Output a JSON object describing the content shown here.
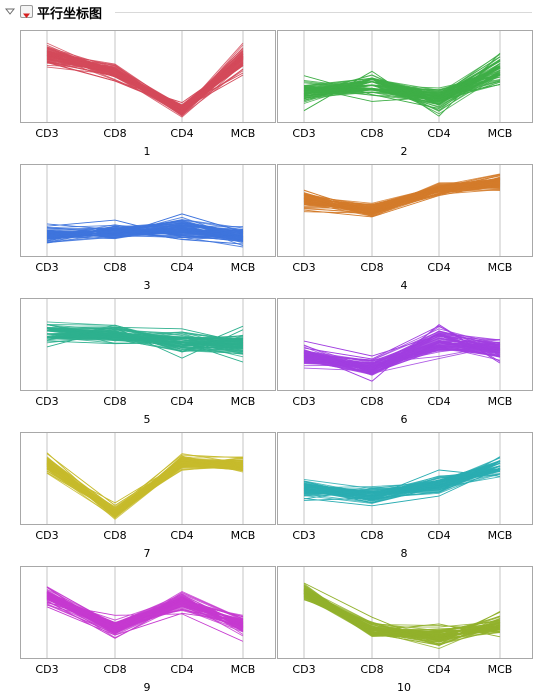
{
  "report": {
    "title": "平行坐标图"
  },
  "icons": {
    "collapse": "triangle-down-icon",
    "menu": "red-triangle-menu-icon"
  },
  "chart_data": [
    {
      "type": "parallel-coordinates",
      "title": "1",
      "axes": [
        "CD3",
        "CD8",
        "CD4",
        "MCB"
      ],
      "color": "#d44a5a",
      "profiles": {
        "center": [
          0.74,
          0.55,
          0.1,
          0.72
        ],
        "spread": [
          0.16,
          0.11,
          0.09,
          0.18
        ]
      }
    },
    {
      "type": "parallel-coordinates",
      "title": "2",
      "axes": [
        "CD3",
        "CD8",
        "CD4",
        "MCB"
      ],
      "color": "#3eae46",
      "profiles": {
        "center": [
          0.3,
          0.4,
          0.24,
          0.58
        ],
        "spread": [
          0.18,
          0.18,
          0.2,
          0.24
        ]
      }
    },
    {
      "type": "parallel-coordinates",
      "title": "3",
      "axes": [
        "CD3",
        "CD8",
        "CD4",
        "MCB"
      ],
      "color": "#3e74dd",
      "profiles": {
        "center": [
          0.2,
          0.24,
          0.28,
          0.2
        ],
        "spread": [
          0.14,
          0.12,
          0.18,
          0.14
        ]
      }
    },
    {
      "type": "parallel-coordinates",
      "title": "4",
      "axes": [
        "CD3",
        "CD8",
        "CD4",
        "MCB"
      ],
      "color": "#d37b2a",
      "profiles": {
        "center": [
          0.62,
          0.5,
          0.75,
          0.82
        ],
        "spread": [
          0.14,
          0.1,
          0.09,
          0.13
        ]
      }
    },
    {
      "type": "parallel-coordinates",
      "title": "5",
      "axes": [
        "CD3",
        "CD8",
        "CD4",
        "MCB"
      ],
      "color": "#2eb08e",
      "profiles": {
        "center": [
          0.64,
          0.62,
          0.52,
          0.5
        ],
        "spread": [
          0.16,
          0.14,
          0.16,
          0.18
        ]
      }
    },
    {
      "type": "parallel-coordinates",
      "title": "6",
      "axes": [
        "CD3",
        "CD8",
        "CD4",
        "MCB"
      ],
      "color": "#a13ee0",
      "profiles": {
        "center": [
          0.36,
          0.22,
          0.52,
          0.43
        ],
        "spread": [
          0.16,
          0.14,
          0.22,
          0.16
        ]
      }
    },
    {
      "type": "parallel-coordinates",
      "title": "7",
      "axes": [
        "CD3",
        "CD8",
        "CD4",
        "MCB"
      ],
      "color": "#c7bb2c",
      "profiles": {
        "center": [
          0.66,
          0.1,
          0.68,
          0.64
        ],
        "spread": [
          0.16,
          0.1,
          0.12,
          0.13
        ]
      }
    },
    {
      "type": "parallel-coordinates",
      "title": "8",
      "axes": [
        "CD3",
        "CD8",
        "CD4",
        "MCB"
      ],
      "color": "#2aadb2",
      "profiles": {
        "center": [
          0.38,
          0.3,
          0.42,
          0.62
        ],
        "spread": [
          0.13,
          0.13,
          0.16,
          0.14
        ]
      }
    },
    {
      "type": "parallel-coordinates",
      "title": "9",
      "axes": [
        "CD3",
        "CD8",
        "CD4",
        "MCB"
      ],
      "color": "#c63ad0",
      "profiles": {
        "center": [
          0.68,
          0.32,
          0.62,
          0.35
        ],
        "spread": [
          0.14,
          0.13,
          0.14,
          0.16
        ]
      }
    },
    {
      "type": "parallel-coordinates",
      "title": "10",
      "axes": [
        "CD3",
        "CD8",
        "CD4",
        "MCB"
      ],
      "color": "#92b12c",
      "profiles": {
        "center": [
          0.72,
          0.28,
          0.22,
          0.34
        ],
        "spread": [
          0.13,
          0.14,
          0.16,
          0.14
        ]
      }
    }
  ]
}
